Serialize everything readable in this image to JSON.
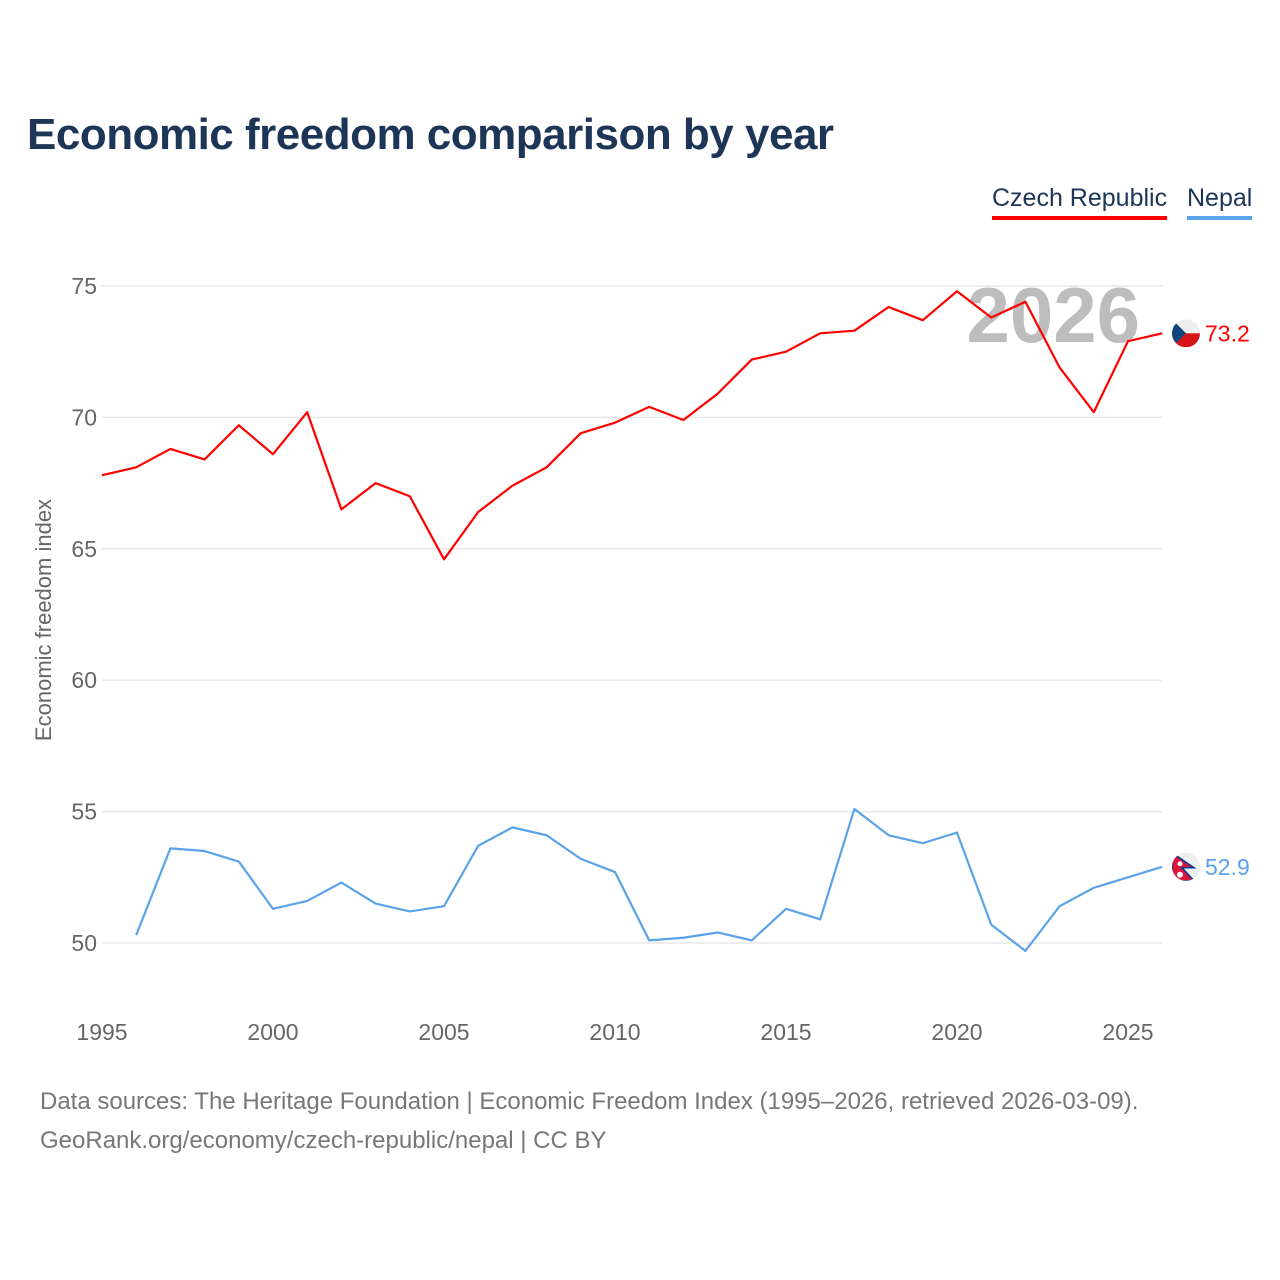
{
  "chart_data": {
    "type": "line",
    "title": "Economic freedom comparison by year",
    "xlabel": "",
    "ylabel": "Economic freedom index",
    "xlim": [
      1995,
      2026
    ],
    "ylim": [
      47.5,
      77
    ],
    "yticks": [
      50,
      55,
      60,
      65,
      70,
      75
    ],
    "xticks": [
      1995,
      2000,
      2005,
      2010,
      2015,
      2020,
      2025
    ],
    "grid": true,
    "legend_position": "top-right",
    "watermark_year": "2026",
    "series": [
      {
        "name": "Czech Republic",
        "color": "#ff0000",
        "end_label": "73.2",
        "x": [
          1995,
          1996,
          1997,
          1998,
          1999,
          2000,
          2001,
          2002,
          2003,
          2004,
          2005,
          2006,
          2007,
          2008,
          2009,
          2010,
          2011,
          2012,
          2013,
          2014,
          2015,
          2016,
          2017,
          2018,
          2019,
          2020,
          2021,
          2022,
          2023,
          2024,
          2025,
          2026
        ],
        "values": [
          67.8,
          68.1,
          68.8,
          68.4,
          69.7,
          68.6,
          70.2,
          66.5,
          67.5,
          67.0,
          64.6,
          66.4,
          67.4,
          68.1,
          69.4,
          69.8,
          70.4,
          69.9,
          70.9,
          72.2,
          72.5,
          73.2,
          73.3,
          74.2,
          73.7,
          74.8,
          73.8,
          74.4,
          71.9,
          70.2,
          72.9,
          73.2
        ]
      },
      {
        "name": "Nepal",
        "color": "#5aa2ea",
        "end_label": "52.9",
        "x": [
          1996,
          1997,
          1998,
          1999,
          2000,
          2001,
          2002,
          2003,
          2004,
          2005,
          2006,
          2007,
          2008,
          2009,
          2010,
          2011,
          2012,
          2013,
          2014,
          2015,
          2016,
          2017,
          2018,
          2019,
          2020,
          2021,
          2022,
          2023,
          2024,
          2025,
          2026
        ],
        "values": [
          50.3,
          53.6,
          53.5,
          53.1,
          51.3,
          51.6,
          52.3,
          51.5,
          51.2,
          51.4,
          53.7,
          54.4,
          54.1,
          53.2,
          52.7,
          50.1,
          50.2,
          50.4,
          50.1,
          51.3,
          50.9,
          55.1,
          54.1,
          53.8,
          54.2,
          50.7,
          49.7,
          51.4,
          52.1,
          52.5,
          52.9
        ]
      }
    ]
  },
  "footer": {
    "sources": "Data sources: The Heritage Foundation | Economic Freedom Index (1995–2026, retrieved 2026-03-09).",
    "credit": "GeoRank.org/economy/czech-republic/nepal | CC BY"
  }
}
